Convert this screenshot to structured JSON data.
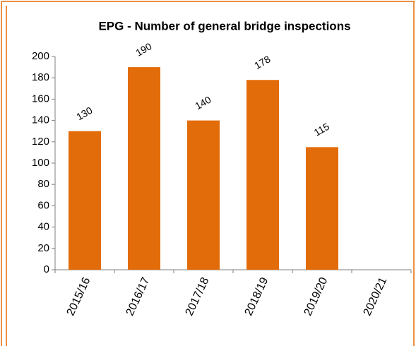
{
  "chart_data": {
    "type": "bar",
    "title": "EPG - Number of general bridge inspections",
    "categories": [
      "2015/16",
      "2016/17",
      "2017/18",
      "2018/19",
      "2019/20",
      "2020/21"
    ],
    "values": [
      130,
      190,
      140,
      178,
      115,
      null
    ],
    "color": "#e36c0a",
    "ylim": [
      0,
      200
    ],
    "yticks": [
      0,
      20,
      40,
      60,
      80,
      100,
      120,
      140,
      160,
      180,
      200
    ],
    "grid": false
  }
}
